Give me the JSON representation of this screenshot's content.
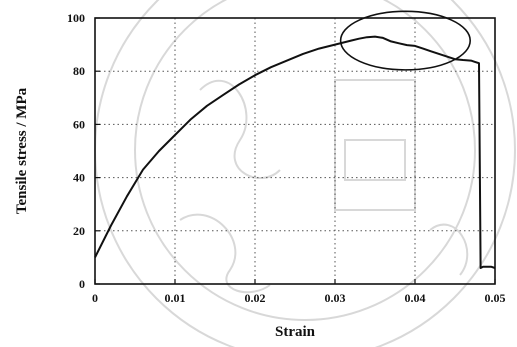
{
  "chart_data": {
    "type": "line",
    "title": "",
    "xlabel": "Strain",
    "ylabel": "Tensile stress / MPa",
    "xlim": [
      0,
      0.05
    ],
    "ylim": [
      0,
      100
    ],
    "xticks": [
      {
        "value": 0,
        "label": "0"
      },
      {
        "value": 0.01,
        "label": "0.01"
      },
      {
        "value": 0.02,
        "label": "0.02"
      },
      {
        "value": 0.03,
        "label": "0.03"
      },
      {
        "value": 0.04,
        "label": "0.04"
      },
      {
        "value": 0.05,
        "label": "0.05"
      }
    ],
    "yticks": [
      {
        "value": 0,
        "label": "0"
      },
      {
        "value": 20,
        "label": "20"
      },
      {
        "value": 40,
        "label": "40"
      },
      {
        "value": 60,
        "label": "60"
      },
      {
        "value": 80,
        "label": "80"
      },
      {
        "value": 100,
        "label": "100"
      }
    ],
    "grid": true,
    "grid_style": "dotted",
    "series": [
      {
        "name": "",
        "color": "#111111",
        "x": [
          0,
          0.002,
          0.004,
          0.006,
          0.008,
          0.01,
          0.012,
          0.014,
          0.016,
          0.018,
          0.02,
          0.022,
          0.024,
          0.026,
          0.028,
          0.03,
          0.032,
          0.033,
          0.034,
          0.035,
          0.036,
          0.037,
          0.038,
          0.039,
          0.04,
          0.041,
          0.042,
          0.043,
          0.044,
          0.045,
          0.046,
          0.047,
          0.0475,
          0.048,
          0.0482,
          0.0485,
          0.049,
          0.0495,
          0.05
        ],
        "y": [
          10,
          22,
          33,
          43,
          50,
          56,
          62,
          67,
          71,
          75,
          78.5,
          81.5,
          84,
          86.5,
          88.5,
          90,
          91.5,
          92.2,
          92.8,
          93,
          92.5,
          91.2,
          90.5,
          89.8,
          89.5,
          88.5,
          87.5,
          86.5,
          85.5,
          84.5,
          84.2,
          84,
          83.5,
          83,
          6,
          6.5,
          6.5,
          6.5,
          6
        ]
      }
    ],
    "annotations": [
      {
        "type": "ellipse",
        "x_center": 0.0388,
        "y_center": 91.5,
        "x_radius": 0.0081,
        "y_radius": 11
      }
    ]
  }
}
